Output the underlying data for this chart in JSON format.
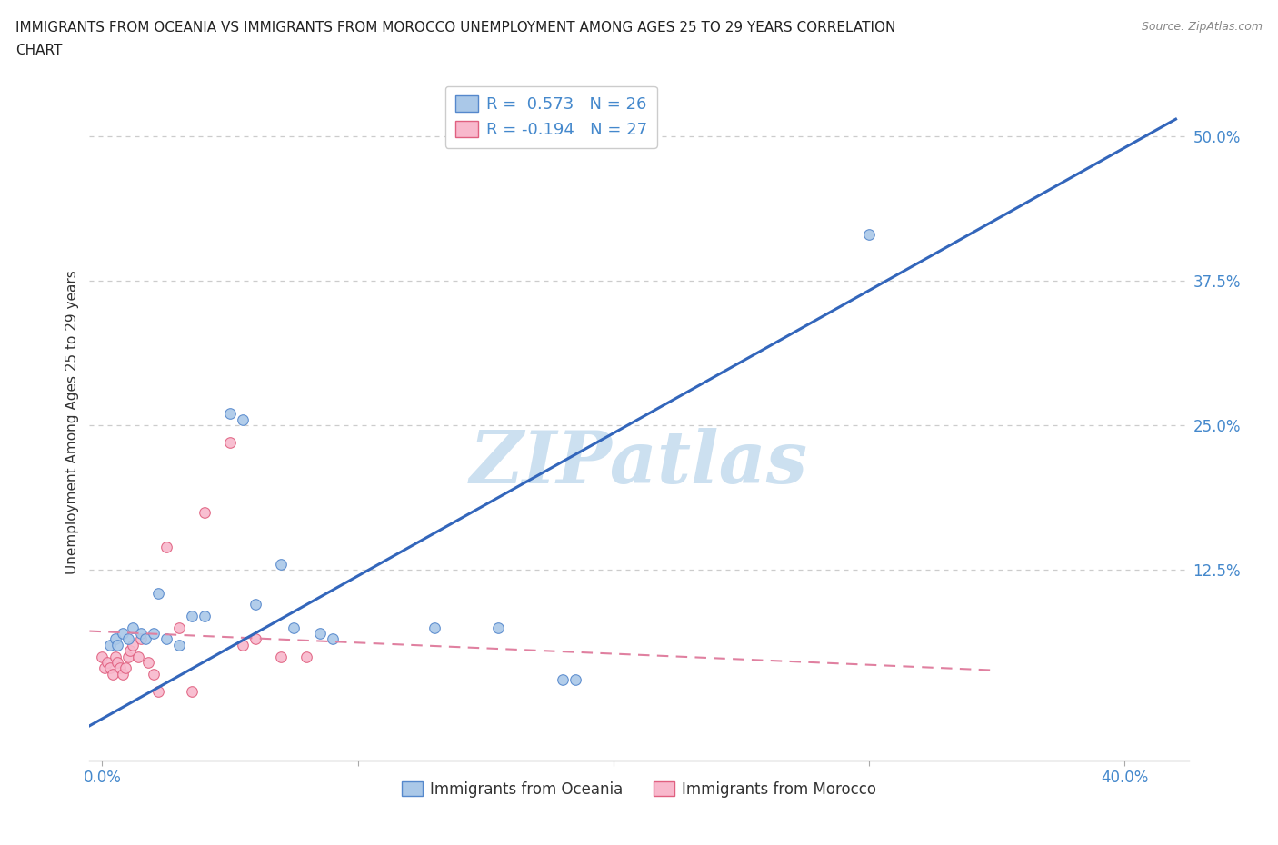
{
  "title": "IMMIGRANTS FROM OCEANIA VS IMMIGRANTS FROM MOROCCO UNEMPLOYMENT AMONG AGES 25 TO 29 YEARS CORRELATION\nCHART",
  "source": "Source: ZipAtlas.com",
  "ylabel": "Unemployment Among Ages 25 to 29 years",
  "xlim": [
    -0.005,
    0.425
  ],
  "ylim": [
    -0.04,
    0.545
  ],
  "x_tick_positions": [
    0.0,
    0.1,
    0.2,
    0.3,
    0.4
  ],
  "x_tick_labels": [
    "0.0%",
    "",
    "",
    "",
    "40.0%"
  ],
  "y_tick_positions": [
    0.0,
    0.125,
    0.25,
    0.375,
    0.5
  ],
  "y_tick_labels": [
    "",
    "12.5%",
    "25.0%",
    "37.5%",
    "50.0%"
  ],
  "oceania_scatter": {
    "x": [
      0.003,
      0.005,
      0.006,
      0.008,
      0.01,
      0.012,
      0.015,
      0.017,
      0.02,
      0.022,
      0.025,
      0.03,
      0.035,
      0.04,
      0.05,
      0.055,
      0.06,
      0.07,
      0.075,
      0.085,
      0.09,
      0.13,
      0.155,
      0.18,
      0.185,
      0.3
    ],
    "y": [
      0.06,
      0.065,
      0.06,
      0.07,
      0.065,
      0.075,
      0.07,
      0.065,
      0.07,
      0.105,
      0.065,
      0.06,
      0.085,
      0.085,
      0.26,
      0.255,
      0.095,
      0.13,
      0.075,
      0.07,
      0.065,
      0.075,
      0.075,
      0.03,
      0.03,
      0.415
    ],
    "color": "#aac8e8",
    "edgecolor": "#5588cc",
    "size": 70,
    "R": 0.573,
    "N": 26
  },
  "morocco_scatter": {
    "x": [
      0.0,
      0.001,
      0.002,
      0.003,
      0.004,
      0.005,
      0.006,
      0.007,
      0.008,
      0.009,
      0.01,
      0.011,
      0.012,
      0.014,
      0.015,
      0.018,
      0.02,
      0.022,
      0.025,
      0.03,
      0.035,
      0.04,
      0.05,
      0.055,
      0.06,
      0.07,
      0.08
    ],
    "y": [
      0.05,
      0.04,
      0.045,
      0.04,
      0.035,
      0.05,
      0.045,
      0.04,
      0.035,
      0.04,
      0.05,
      0.055,
      0.06,
      0.05,
      0.065,
      0.045,
      0.035,
      0.02,
      0.145,
      0.075,
      0.02,
      0.175,
      0.235,
      0.06,
      0.065,
      0.05,
      0.05
    ],
    "color": "#f8b8cc",
    "edgecolor": "#e06080",
    "size": 70,
    "R": -0.194,
    "N": 27
  },
  "oceania_line": {
    "x0": -0.005,
    "y0": -0.01,
    "x1": 0.42,
    "y1": 0.515
  },
  "morocco_line": {
    "x0": -0.005,
    "y0": 0.072,
    "x1": 0.35,
    "y1": 0.038
  },
  "oceania_line_color": "#3366bb",
  "morocco_line_color": "#e080a0",
  "morocco_line_style": "--",
  "legend_blue_label": "R =  0.573   N = 26",
  "legend_pink_label": "R = -0.194   N = 27",
  "legend_blue_color": "#aac8e8",
  "legend_pink_color": "#f8b8cc",
  "legend_blue_edge": "#5588cc",
  "legend_pink_edge": "#e06080",
  "watermark_text": "ZIPatlas",
  "watermark_color": "#cce0f0",
  "bottom_legend_oceania": "Immigrants from Oceania",
  "bottom_legend_morocco": "Immigrants from Morocco",
  "title_color": "#222222",
  "axis_tick_color": "#4488cc",
  "grid_color": "#cccccc",
  "spine_color": "#aaaaaa"
}
